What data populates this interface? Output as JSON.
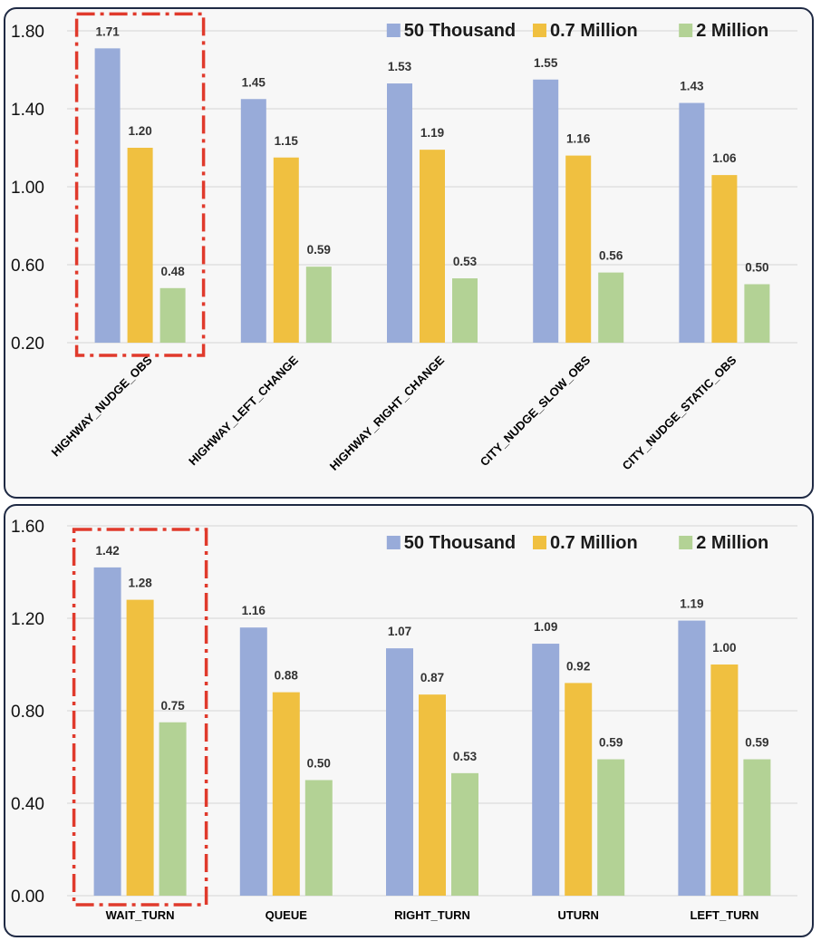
{
  "colors": {
    "s1": "#98abd9",
    "s2": "#f0c040",
    "s3": "#b3d295",
    "highlight": "#e03a2c",
    "grid": "#d4d4d4"
  },
  "chart_data": [
    {
      "type": "bar",
      "categories": [
        "HIGHWAY_NUDGE_OBS",
        "HIGHWAY_LEFT_CHANGE",
        "HIGHWAY_RIGHT_CHANGE",
        "CITY_NUDGE_SLOW_OBS",
        "CITY_NUDGE_STATIC_OBS"
      ],
      "series": [
        {
          "name": "50 Thousand",
          "values": [
            1.71,
            1.45,
            1.53,
            1.55,
            1.43
          ],
          "labels": [
            "1.71",
            "1.45",
            "1.53",
            "1.55",
            "1.43"
          ]
        },
        {
          "name": "0.7 Million",
          "values": [
            1.2,
            1.15,
            1.19,
            1.16,
            1.06
          ],
          "labels": [
            "1.20",
            "1.15",
            "1.19",
            "1.16",
            "1.06"
          ]
        },
        {
          "name": "2 Million",
          "values": [
            0.48,
            0.59,
            0.53,
            0.56,
            0.5
          ],
          "labels": [
            "0.48",
            "0.59",
            "0.53",
            "0.56",
            "0.50"
          ]
        }
      ],
      "yticks": [
        "0.20",
        "0.60",
        "1.00",
        "1.40",
        "1.80"
      ],
      "ylim": [
        0.2,
        1.8
      ],
      "legend": "top-right",
      "grid": true,
      "highlighted_category": "HIGHWAY_NUDGE_OBS",
      "xlabel": "",
      "ylabel": "",
      "title": ""
    },
    {
      "type": "bar",
      "categories": [
        "WAIT_TURN",
        "QUEUE",
        "RIGHT_TURN",
        "UTURN",
        "LEFT_TURN"
      ],
      "series": [
        {
          "name": "50 Thousand",
          "values": [
            1.42,
            1.16,
            1.07,
            1.09,
            1.19
          ],
          "labels": [
            "1.42",
            "1.16",
            "1.07",
            "1.09",
            "1.19"
          ]
        },
        {
          "name": "0.7 Million",
          "values": [
            1.28,
            0.88,
            0.87,
            0.92,
            1.0
          ],
          "labels": [
            "1.28",
            "0.88",
            "0.87",
            "0.92",
            "1.00"
          ]
        },
        {
          "name": "2 Million",
          "values": [
            0.75,
            0.5,
            0.53,
            0.59,
            0.59
          ],
          "labels": [
            "0.75",
            "0.50",
            "0.53",
            "0.59",
            "0.59"
          ]
        }
      ],
      "yticks": [
        "0.00",
        "0.40",
        "0.80",
        "1.20",
        "1.60"
      ],
      "ylim": [
        0.0,
        1.6
      ],
      "legend": "top-right",
      "grid": true,
      "highlighted_category": "WAIT_TURN",
      "xlabel": "",
      "ylabel": "",
      "title": ""
    }
  ]
}
